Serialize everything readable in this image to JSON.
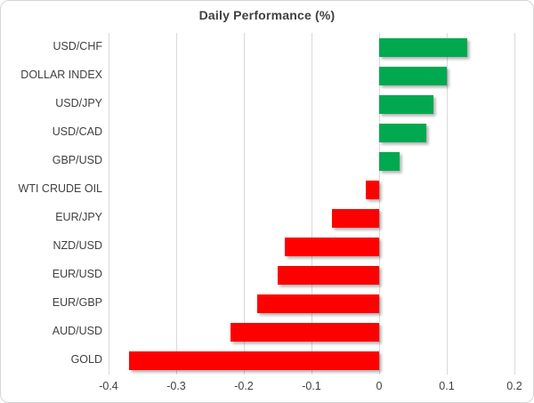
{
  "chart_data": {
    "type": "bar",
    "orientation": "horizontal",
    "title": "Daily Performance (%)",
    "categories": [
      "USD/CHF",
      "DOLLAR INDEX",
      "USD/JPY",
      "USD/CAD",
      "GBP/USD",
      "WTI CRUDE OIL",
      "EUR/JPY",
      "NZD/USD",
      "EUR/USD",
      "EUR/GBP",
      "AUD/USD",
      "GOLD"
    ],
    "values": [
      0.13,
      0.1,
      0.08,
      0.07,
      0.03,
      -0.02,
      -0.07,
      -0.14,
      -0.15,
      -0.18,
      -0.22,
      -0.37
    ],
    "xlim": [
      -0.4,
      0.2
    ],
    "x_ticks": [
      -0.4,
      -0.3,
      -0.2,
      -0.1,
      0,
      0.1,
      0.2
    ],
    "x_tick_labels": [
      "-0.4",
      "-0.3",
      "-0.2",
      "-0.1",
      "0",
      "0.1",
      "0.2"
    ],
    "grid": true,
    "legend": false,
    "positive_color": "#00a94f",
    "negative_color": "#ff0000",
    "gridline_color": "#d9d9d9",
    "text_color": "#404040",
    "title_color": "#3f3f3f"
  }
}
